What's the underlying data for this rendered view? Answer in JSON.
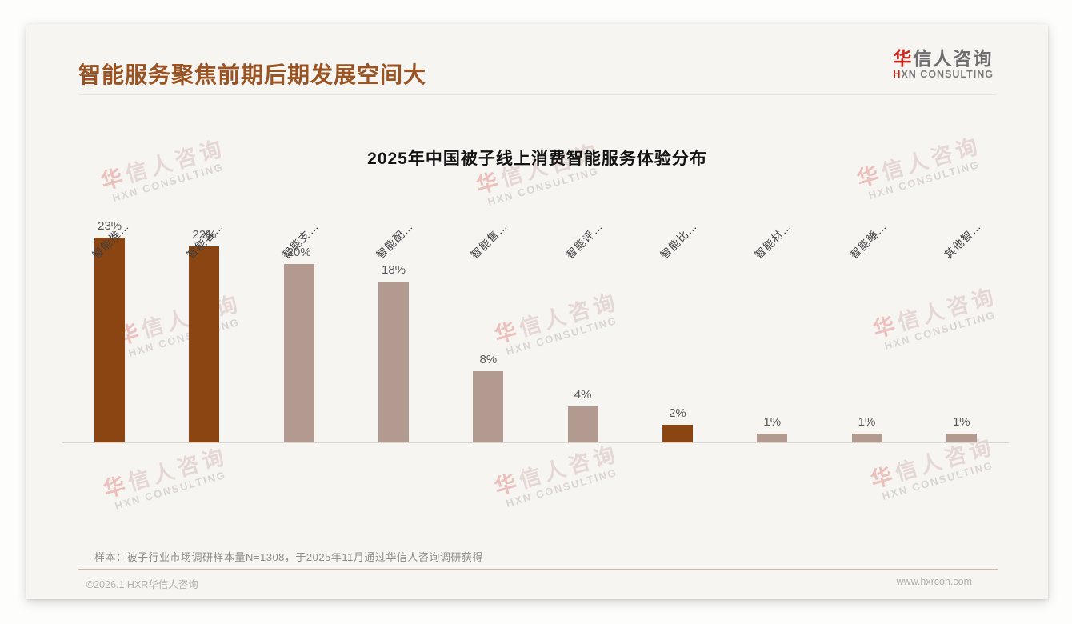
{
  "header": {
    "title": "智能服务聚焦前期后期发展空间大",
    "logo": {
      "cn_first": "华",
      "cn_rest": "信人咨询",
      "en_first": "H",
      "en_rest": "XN CONSULTING"
    }
  },
  "chart_data": {
    "type": "bar",
    "title": "2025年中国被子线上消费智能服务体验分布",
    "categories": [
      "智能推…",
      "智能客…",
      "智能支…",
      "智能配…",
      "智能售…",
      "智能评…",
      "智能比…",
      "智能材…",
      "智能睡…",
      "其他智…"
    ],
    "values": [
      23,
      22,
      20,
      18,
      8,
      4,
      2,
      1,
      1,
      1
    ],
    "value_labels": [
      "23%",
      "22%",
      "20%",
      "18%",
      "8%",
      "4%",
      "2%",
      "1%",
      "1%",
      "1%"
    ],
    "highlighted_indices": [
      0,
      1,
      6
    ],
    "colors": {
      "highlight": "#8b4513",
      "normal": "#b39a90"
    },
    "ylim": [
      0,
      25
    ],
    "xlabel": "",
    "ylabel": "",
    "grid": false,
    "legend": false
  },
  "note": "样本：被子行业市场调研样本量N=1308，于2025年11月通过华信人咨询调研获得",
  "footer": {
    "copyright": "©2026.1 HXR华信人咨询",
    "website": "www.hxrcon.com"
  },
  "watermark": {
    "line1_first": "华",
    "line1_rest": "信人咨询",
    "line2": "HXN CONSULTING"
  }
}
